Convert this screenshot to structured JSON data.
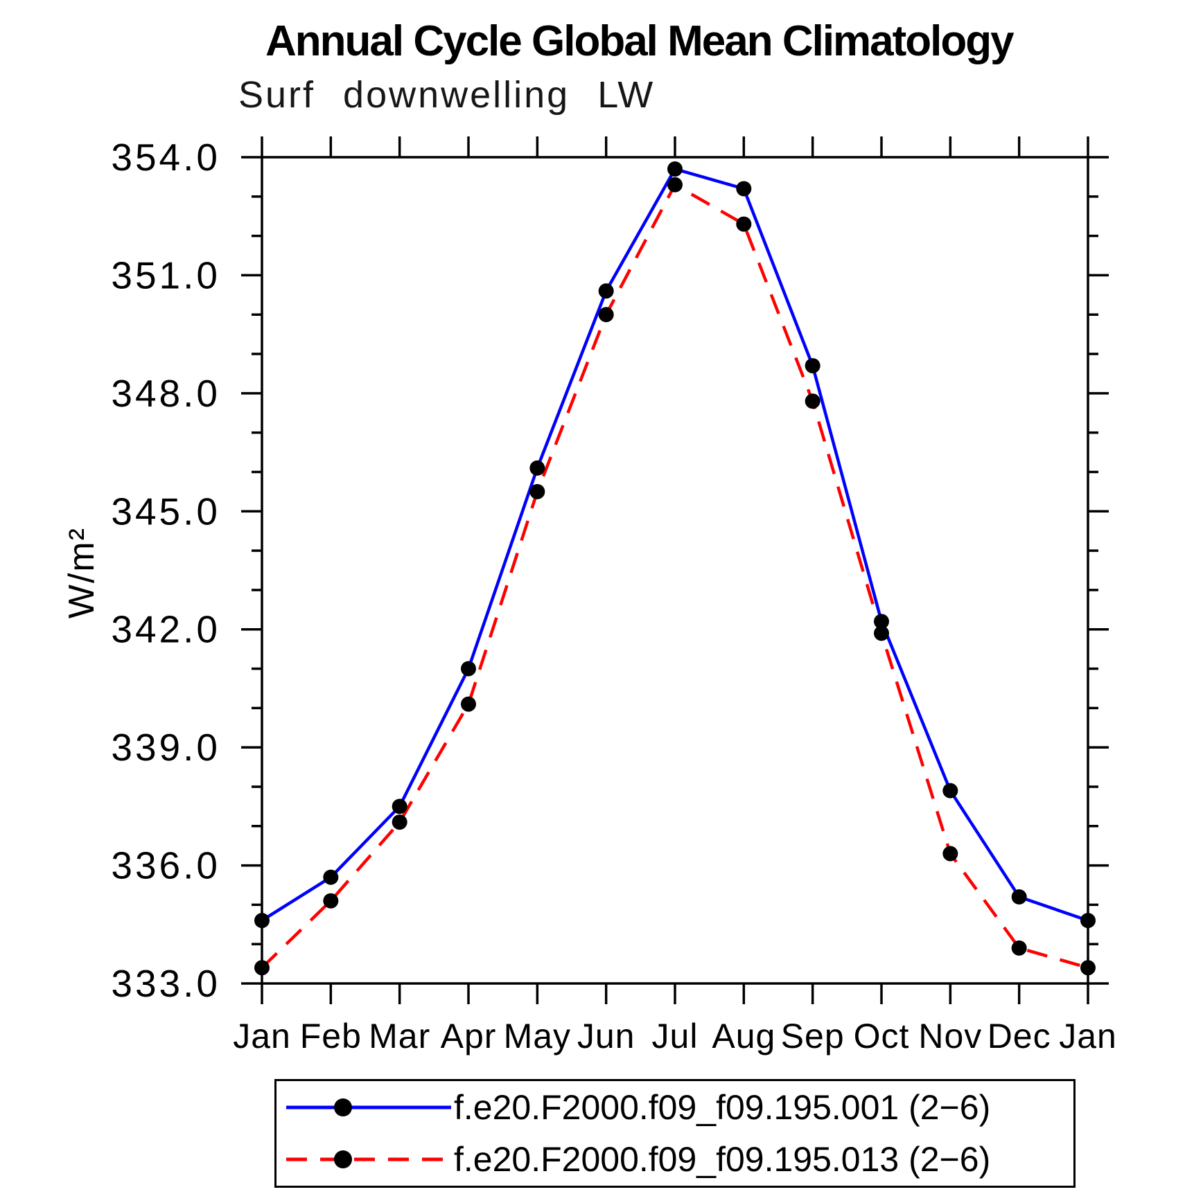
{
  "page": {
    "background": "#ffffff"
  },
  "chart": {
    "title": "Annual Cycle Global Mean Climatology",
    "subtitle": "Surf downwelling LW",
    "ylabel": "W/m²"
  },
  "chart_data": {
    "type": "line",
    "categories": [
      "Jan",
      "Feb",
      "Mar",
      "Apr",
      "May",
      "Jun",
      "Jul",
      "Aug",
      "Sep",
      "Oct",
      "Nov",
      "Dec",
      "Jan"
    ],
    "series": [
      {
        "name": "f.e20.F2000.f09_f09.195.001 (2−6)",
        "color": "#0000ff",
        "line_style": "solid",
        "marker": "circle",
        "marker_color": "#000000",
        "values": [
          334.6,
          335.7,
          337.5,
          341.0,
          346.1,
          350.6,
          353.7,
          353.2,
          348.7,
          342.2,
          337.9,
          335.2,
          334.6
        ]
      },
      {
        "name": "f.e20.F2000.f09_f09.195.013 (2−6)",
        "color": "#ff0000",
        "line_style": "dashed",
        "marker": "circle",
        "marker_color": "#000000",
        "values": [
          333.4,
          335.1,
          337.1,
          340.1,
          345.5,
          350.0,
          353.3,
          352.3,
          347.8,
          341.9,
          336.3,
          333.9,
          333.4
        ]
      }
    ],
    "xlabel": "",
    "ylabel": "W/m²",
    "ylim": [
      333.0,
      354.0
    ],
    "ytick_major_interval": 3.0,
    "ytick_minor_interval": 1.0,
    "ytick_labels": [
      "333.0",
      "336.0",
      "339.0",
      "342.0",
      "345.0",
      "348.0",
      "351.0",
      "354.0"
    ],
    "grid": false,
    "frame_color": "#000000",
    "legend_position": "bottom"
  }
}
